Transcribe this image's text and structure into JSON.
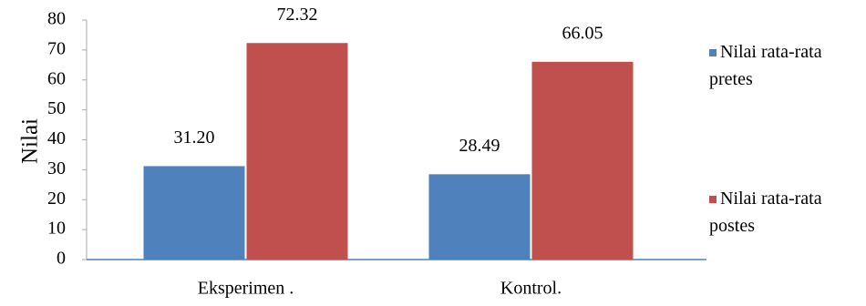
{
  "chart_data": {
    "type": "bar",
    "y_label": "Nilai",
    "categories": [
      "Eksperimen .",
      "Kontrol."
    ],
    "series": [
      {
        "name": "Nilai rata-rata pretes",
        "color": "#4f81bd",
        "values": [
          31.2,
          28.49
        ],
        "value_labels": [
          "31.20",
          "28.49"
        ]
      },
      {
        "name": "Nilai rata-rata postes",
        "color": "#c0504d",
        "values": [
          72.32,
          66.05
        ],
        "value_labels": [
          "72.32",
          "66.05"
        ]
      }
    ],
    "ylim": [
      0,
      80
    ],
    "yticks": [
      0,
      10,
      20,
      30,
      40,
      50,
      60,
      70,
      80
    ],
    "legend": "right"
  }
}
